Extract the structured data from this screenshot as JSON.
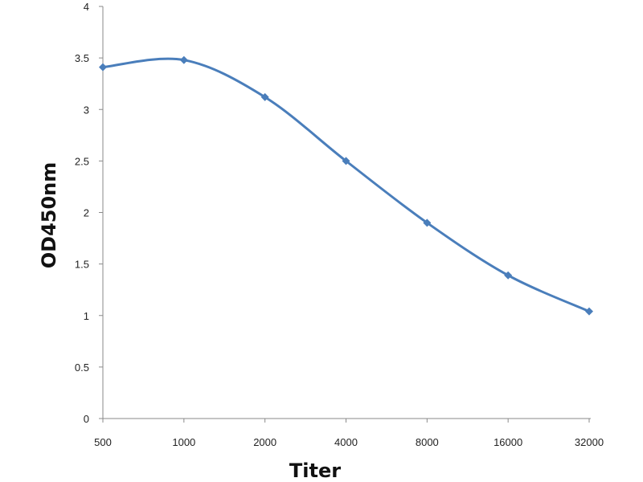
{
  "chart_data": {
    "type": "line",
    "title": "",
    "xlabel": "Titer",
    "ylabel": "OD450nm",
    "categories": [
      "500",
      "1000",
      "2000",
      "4000",
      "8000",
      "16000",
      "32000"
    ],
    "series": [
      {
        "name": "OD450nm",
        "values": [
          3.41,
          3.48,
          3.12,
          2.5,
          1.9,
          1.39,
          1.04
        ],
        "color": "#4a7ebb",
        "marker": "diamond",
        "smooth": true
      }
    ],
    "ylim": [
      0,
      4
    ],
    "yticks": [
      "0",
      "0.5",
      "1",
      "1.5",
      "2",
      "2.5",
      "3",
      "3.5",
      "4"
    ],
    "grid": false,
    "legend": "none"
  }
}
